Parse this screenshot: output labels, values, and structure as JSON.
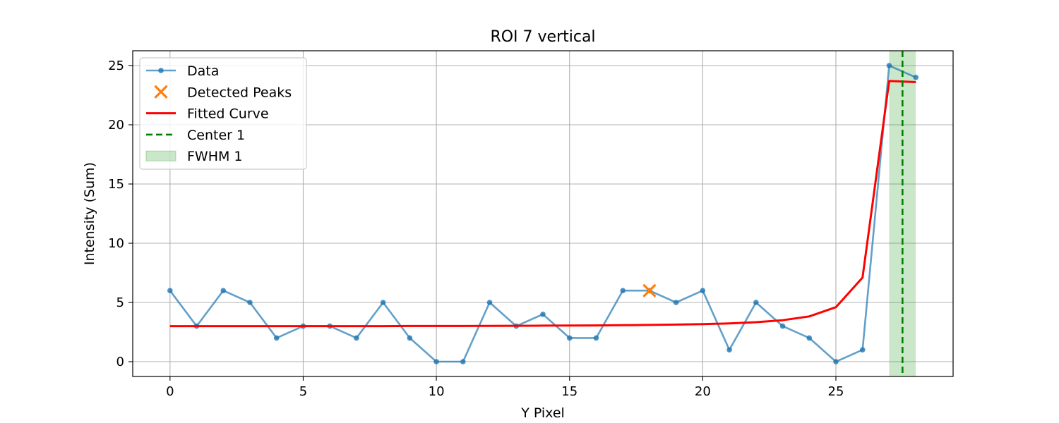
{
  "chart_data": {
    "type": "line",
    "title": "ROI 7 vertical",
    "xlabel": "Y Pixel",
    "ylabel": "Intensity (Sum)",
    "xlim": [
      -1.4,
      29.4
    ],
    "ylim": [
      -1.25,
      26.25
    ],
    "xticks": [
      0,
      5,
      10,
      15,
      20,
      25
    ],
    "yticks": [
      0,
      5,
      10,
      15,
      20,
      25
    ],
    "grid": true,
    "legend_position": "upper-left",
    "series": [
      {
        "name": "Data",
        "kind": "line-marker",
        "color": "#1f77b4",
        "x": [
          0,
          1,
          2,
          3,
          4,
          5,
          6,
          7,
          8,
          9,
          10,
          11,
          12,
          13,
          14,
          15,
          16,
          17,
          18,
          19,
          20,
          21,
          22,
          23,
          24,
          25,
          26,
          27,
          28
        ],
        "y": [
          6,
          3,
          6,
          5,
          2,
          3,
          3,
          2,
          5,
          2,
          0,
          0,
          5,
          3,
          4,
          2,
          2,
          6,
          6,
          5,
          6,
          1,
          5,
          3,
          2,
          0,
          1,
          25,
          24
        ]
      },
      {
        "name": "Detected Peaks",
        "kind": "marker-x",
        "color": "#ff7f0e",
        "x": [
          18
        ],
        "y": [
          6
        ]
      },
      {
        "name": "Fitted Curve",
        "kind": "line",
        "color": "#ff0000",
        "x": [
          0,
          1,
          2,
          3,
          4,
          5,
          6,
          7,
          8,
          9,
          10,
          11,
          12,
          13,
          14,
          15,
          16,
          17,
          18,
          19,
          20,
          21,
          22,
          23,
          24,
          25,
          26,
          27,
          28
        ],
        "y": [
          3.0,
          3.0,
          3.0,
          3.0,
          3.0,
          3.0,
          3.0,
          3.0,
          3.0,
          3.01,
          3.01,
          3.01,
          3.02,
          3.03,
          3.04,
          3.05,
          3.06,
          3.08,
          3.1,
          3.13,
          3.17,
          3.23,
          3.33,
          3.5,
          3.82,
          4.6,
          7.1,
          23.7,
          23.6
        ]
      },
      {
        "name": "Center 1",
        "kind": "vline-dashed",
        "color": "#008000",
        "x": 27.5
      },
      {
        "name": "FWHM 1",
        "kind": "vspan",
        "color": "#2ca02c",
        "x0": 27,
        "x1": 28
      }
    ]
  }
}
